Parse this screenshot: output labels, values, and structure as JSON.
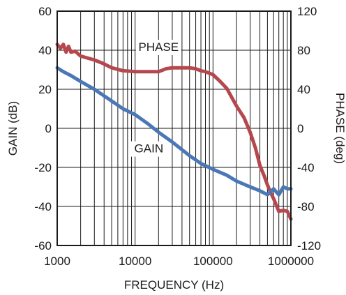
{
  "chart_data": {
    "type": "line",
    "xlabel": "FREQUENCY (Hz)",
    "ylabel_left": "GAIN (dB)",
    "ylabel_right": "PHASE (deg)",
    "x_scale": "log",
    "xlim": [
      1000,
      1000000
    ],
    "ylim_left": [
      -60,
      60
    ],
    "ylim_right": [
      -120,
      120
    ],
    "grid": true,
    "x_ticks": [
      1000,
      10000,
      100000,
      1000000
    ],
    "x_tick_labels": [
      "1000",
      "10000",
      "100000",
      "1000000"
    ],
    "y_left_ticks": [
      60,
      40,
      20,
      0,
      -20,
      -40,
      -60
    ],
    "y_left_tick_labels": [
      "60",
      "40",
      "20",
      "0",
      "-20",
      "-40",
      "-60"
    ],
    "y_right_ticks": [
      120,
      80,
      40,
      0,
      -40,
      -80,
      -120
    ],
    "y_right_tick_labels": [
      "120",
      "80",
      "40",
      "0",
      "-40",
      "-80",
      "-120"
    ],
    "series": [
      {
        "axis": "right",
        "color": "#b5484e",
        "x": [
          1000,
          1100,
          1200,
          1300,
          1400,
          1500,
          1700,
          2000,
          3000,
          4000,
          5000,
          7000,
          10000,
          15000,
          20000,
          25000,
          30000,
          40000,
          50000,
          60000,
          70000,
          80000,
          100000,
          120000,
          150000,
          200000,
          250000,
          300000,
          350000,
          400000,
          450000,
          500000,
          550000,
          600000,
          700000,
          800000,
          900000,
          1000000
        ],
        "y": [
          86,
          82,
          86,
          78,
          84,
          78,
          79,
          74,
          70,
          66,
          62,
          59,
          58,
          58,
          58,
          61,
          62,
          62,
          62,
          61,
          59,
          58,
          55,
          49,
          41,
          23,
          11,
          -4,
          -20,
          -38,
          -48,
          -58,
          -66,
          -72,
          -85,
          -84,
          -85,
          -93
        ]
      },
      {
        "axis": "left",
        "color": "#4a77b6",
        "x": [
          1000,
          1200,
          1500,
          2000,
          3000,
          5000,
          7000,
          10000,
          15000,
          20000,
          30000,
          50000,
          70000,
          100000,
          150000,
          200000,
          300000,
          400000,
          500000,
          600000,
          700000,
          800000,
          900000,
          1000000
        ],
        "y": [
          31,
          29,
          27,
          24,
          20,
          14,
          10,
          7,
          2,
          -2,
          -7,
          -14,
          -18,
          -21,
          -24,
          -27,
          -30,
          -32,
          -34,
          -31,
          -34,
          -30,
          -31,
          -31
        ]
      }
    ],
    "annotations": [
      {
        "text": "PHASE",
        "x": 20000,
        "y_axis": "right",
        "y": 80
      },
      {
        "text": "GAIN",
        "x": 15000,
        "y_axis": "left",
        "y": -12
      }
    ]
  }
}
